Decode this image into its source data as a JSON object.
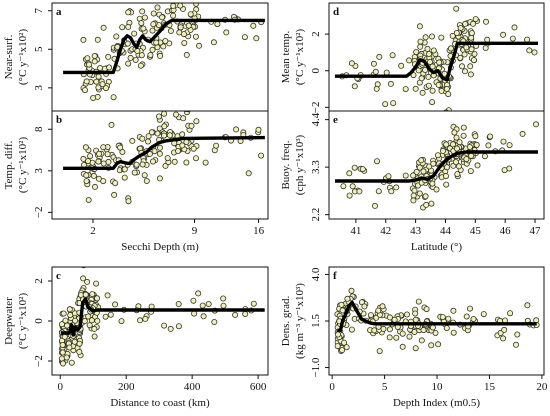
{
  "chart_data": [
    {
      "id": "a",
      "panel_label": "a",
      "type": "scatter",
      "ylabel": [
        "Near-surf.",
        "(°C y⁻¹x10²)"
      ],
      "xlabel": "",
      "xscale": "sqrt",
      "xlim": [
        0.6,
        17.2
      ],
      "ylim": [
        1.8,
        7.4
      ],
      "xticks": [],
      "xtick_labels": [],
      "yticks": [
        3,
        5,
        7
      ],
      "ytick_labels": [
        "3",
        "5",
        "7"
      ],
      "fit_line": {
        "x": [
          0.9,
          3.0,
          3.2,
          3.4,
          3.6,
          3.8,
          4.0,
          4.2,
          4.4,
          4.6,
          4.8,
          5.0,
          5.3,
          5.6,
          6.0,
          6.5,
          7.0,
          7.5,
          16.8
        ],
        "y": [
          3.8,
          3.8,
          4.4,
          5.0,
          5.5,
          5.7,
          5.6,
          5.3,
          5.1,
          5.5,
          5.7,
          5.5,
          5.4,
          5.6,
          5.9,
          6.3,
          6.5,
          6.5,
          6.5
        ]
      },
      "scatter": {
        "n": 170,
        "seed": 11
      }
    },
    {
      "id": "b",
      "panel_label": "b",
      "type": "scatter",
      "ylabel": [
        "Temp. diff.",
        "(°C y⁻¹x10²)"
      ],
      "xlabel": "Secchi Depth (m)",
      "xscale": "sqrt",
      "xlim": [
        0.6,
        17.2
      ],
      "ylim": [
        -2.8,
        10.2
      ],
      "xticks": [
        2,
        9,
        16
      ],
      "xtick_labels": [
        "2",
        "9",
        "16"
      ],
      "yticks": [
        -2,
        3,
        8
      ],
      "ytick_labels": [
        "−2",
        "3",
        "8"
      ],
      "fit_line": {
        "x": [
          0.9,
          3.0,
          3.2,
          3.4,
          3.6,
          3.8,
          4.0,
          4.2,
          4.5,
          4.8,
          5.1,
          5.4,
          5.7,
          6.0,
          6.5,
          7.0,
          7.5,
          8.0,
          16.8
        ],
        "y": [
          3.3,
          3.3,
          3.9,
          4.1,
          4.0,
          3.9,
          3.9,
          4.3,
          4.7,
          5.0,
          5.3,
          5.8,
          6.1,
          6.4,
          6.6,
          6.7,
          6.8,
          6.9,
          7.0
        ]
      },
      "scatter": {
        "n": 170,
        "seed": 23
      }
    },
    {
      "id": "c",
      "panel_label": "c",
      "type": "scatter",
      "ylabel": [
        "Deepwater",
        "(°C y⁻¹x10²)"
      ],
      "xlabel": "Distance to coast (km)",
      "xscale": "linear",
      "xlim": [
        -25,
        630
      ],
      "ylim": [
        -2.7,
        2.7
      ],
      "xticks": [
        0,
        200,
        400,
        600
      ],
      "xtick_labels": [
        "0",
        "200",
        "400",
        "600"
      ],
      "yticks": [
        -2,
        0,
        2
      ],
      "ytick_labels": [
        "−2",
        "0",
        "2"
      ],
      "fit_line": {
        "x": [
          2,
          28,
          34,
          40,
          45,
          52,
          60,
          68,
          76,
          84,
          92,
          100,
          112,
          130,
          620
        ],
        "y": [
          -0.6,
          -0.6,
          -0.2,
          -0.7,
          -0.3,
          -0.45,
          -0.3,
          0.9,
          1.1,
          0.7,
          0.6,
          0.5,
          0.55,
          0.55,
          0.55
        ]
      },
      "scatter": {
        "n": 185,
        "seed": 37
      }
    },
    {
      "id": "d",
      "panel_label": "d",
      "type": "scatter",
      "ylabel": [
        "Mean temp.",
        "(°C y⁻¹x10²)"
      ],
      "xlabel": "",
      "xscale": "linear",
      "xlim": [
        40.1,
        47.3
      ],
      "ylim": [
        -2.2,
        3.7
      ],
      "xticks": [],
      "xtick_labels": [],
      "yticks": [
        -2,
        0,
        2
      ],
      "ytick_labels": [
        "−2",
        "0",
        "2"
      ],
      "fit_line": {
        "x": [
          40.3,
          42.7,
          42.85,
          43.0,
          43.15,
          43.3,
          43.45,
          43.6,
          43.75,
          43.9,
          44.05,
          44.2,
          44.3,
          44.4,
          47.1
        ],
        "y": [
          -0.3,
          -0.3,
          -0.1,
          0.2,
          0.6,
          0.5,
          0.1,
          -0.1,
          0.0,
          -0.4,
          -0.5,
          0.4,
          0.9,
          1.5,
          1.5
        ]
      },
      "scatter": {
        "n": 190,
        "seed": 53
      }
    },
    {
      "id": "e",
      "panel_label": "e",
      "type": "scatter",
      "ylabel": [
        "Buoy. freq.",
        "(cph y⁻¹x10³)"
      ],
      "xlabel": "Latitude (°)",
      "xscale": "linear",
      "xlim": [
        40.1,
        47.3
      ],
      "ylim": [
        2.1,
        4.6
      ],
      "xticks": [
        41,
        42,
        43,
        44,
        45,
        46,
        47
      ],
      "xtick_labels": [
        "41",
        "42",
        "43",
        "44",
        "45",
        "46",
        "47"
      ],
      "yticks": [
        2.2,
        3.3,
        4.4
      ],
      "ytick_labels": [
        "2.2",
        "3.3",
        "4.4"
      ],
      "fit_line": {
        "x": [
          40.3,
          42.8,
          43.0,
          43.2,
          43.4,
          43.6,
          43.8,
          44.0,
          44.2,
          44.4,
          44.7,
          47.1
        ],
        "y": [
          2.98,
          2.98,
          3.0,
          3.05,
          3.02,
          3.1,
          3.3,
          3.45,
          3.55,
          3.62,
          3.65,
          3.65
        ]
      },
      "scatter": {
        "n": 190,
        "seed": 71
      }
    },
    {
      "id": "f",
      "panel_label": "f",
      "type": "scatter",
      "ylabel": [
        "Dens. grad.",
        "(kg m⁻³ y⁻¹x10³)"
      ],
      "xlabel": "Depth Index (m0.5)",
      "xscale": "linear",
      "xlim": [
        -0.3,
        20.2
      ],
      "ylim": [
        -1.4,
        4.4
      ],
      "xticks": [
        0,
        5,
        10,
        15,
        20
      ],
      "xtick_labels": [
        "0",
        "5",
        "10",
        "15",
        "20"
      ],
      "yticks": [
        -1.0,
        1.5,
        4.0
      ],
      "ytick_labels": [
        "−1.0",
        "1.5",
        "4.0"
      ],
      "fit_line": {
        "x": [
          0.5,
          0.8,
          1.0,
          1.3,
          1.6,
          1.9,
          2.2,
          2.5,
          2.8,
          3.2,
          3.6,
          4.0,
          5.0,
          19.5
        ],
        "y": [
          1.0,
          1.0,
          1.5,
          1.9,
          2.3,
          2.5,
          2.2,
          1.9,
          1.6,
          1.5,
          1.4,
          1.35,
          1.35,
          1.35
        ]
      },
      "scatter": {
        "n": 190,
        "seed": 97
      }
    }
  ]
}
